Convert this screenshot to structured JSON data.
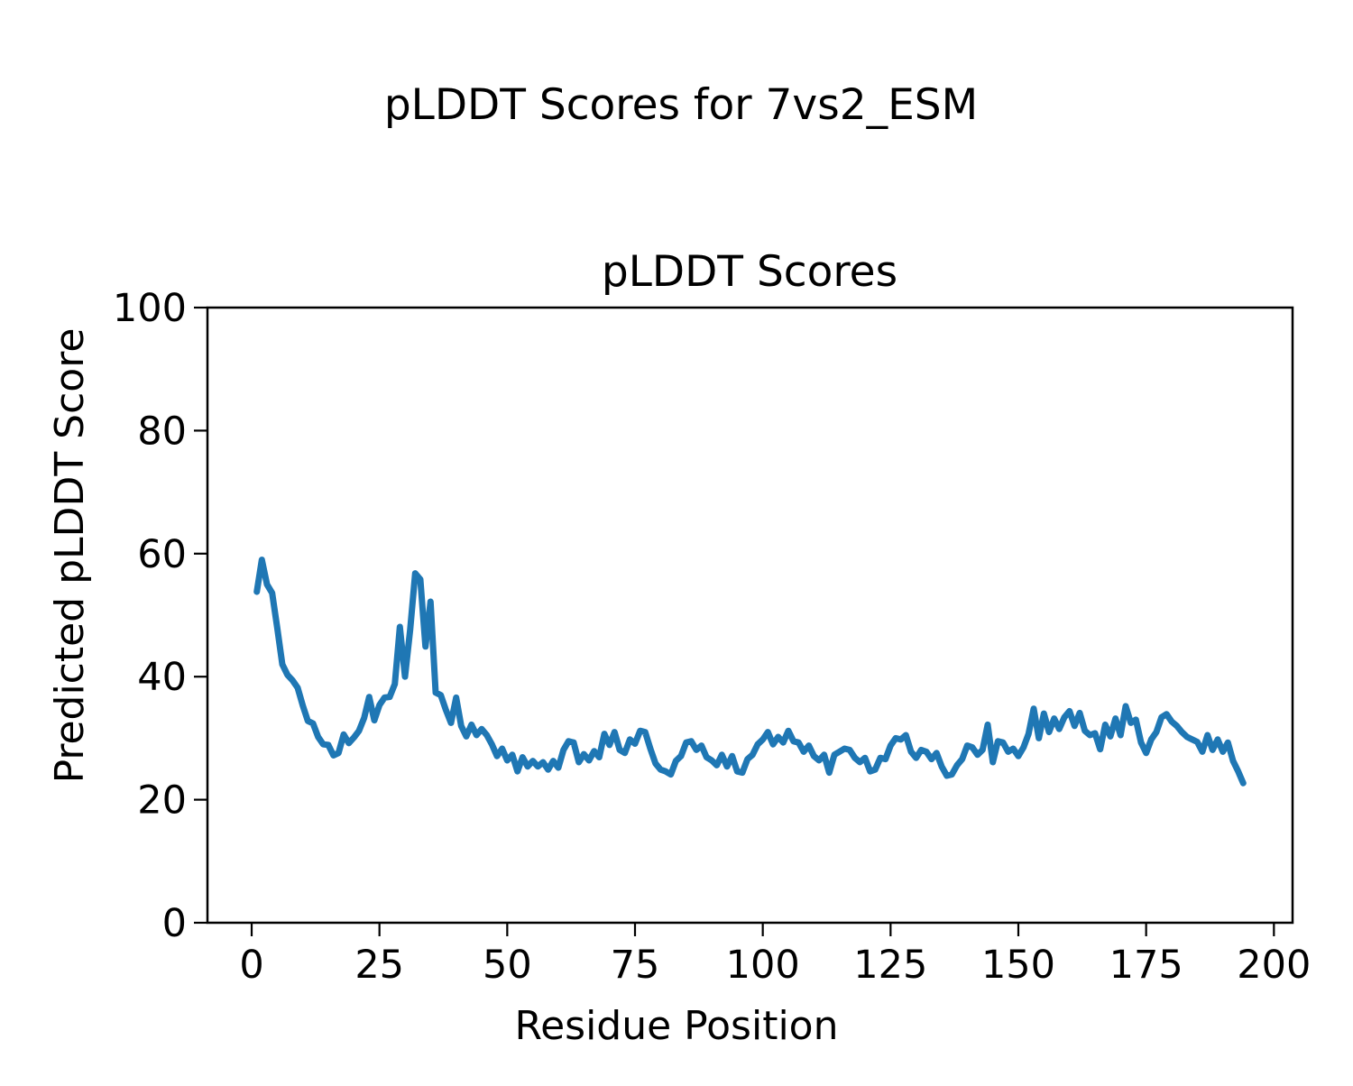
{
  "figure": {
    "title": "pLDDT Scores for 7vs2_ESM",
    "background": "#ffffff",
    "text_color": "#000000"
  },
  "chart_data": {
    "type": "line",
    "title": "pLDDT Scores",
    "xlabel": "Residue Position",
    "ylabel": "Predicted pLDDT Score",
    "legend": "none",
    "grid": false,
    "line_color": "#1f77b4",
    "xlim": [
      -8.65,
      203.65
    ],
    "ylim": [
      0,
      100
    ],
    "xticks": [
      0,
      25,
      50,
      75,
      100,
      125,
      150,
      175,
      200
    ],
    "yticks": [
      0,
      20,
      40,
      60,
      80,
      100
    ],
    "x_start": 1,
    "x_step": 1,
    "series": [
      {
        "name": "pLDDT",
        "values": [
          53.8,
          59.0,
          55.0,
          53.6,
          48.0,
          42.0,
          40.3,
          39.4,
          38.2,
          35.3,
          32.8,
          32.4,
          30.2,
          29.0,
          28.9,
          27.2,
          27.6,
          30.6,
          29.2,
          30.1,
          31.2,
          33.3,
          36.7,
          32.9,
          35.4,
          36.6,
          36.7,
          38.8,
          48.1,
          40.0,
          47.6,
          56.8,
          55.8,
          44.9,
          52.2,
          37.4,
          37.0,
          34.6,
          32.5,
          36.6,
          32.0,
          30.3,
          32.2,
          30.5,
          31.5,
          30.5,
          29.0,
          27.1,
          28.3,
          26.4,
          27.3,
          24.6,
          26.9,
          25.4,
          26.3,
          25.4,
          26.1,
          24.9,
          26.3,
          25.2,
          28.1,
          29.5,
          29.3,
          26.1,
          27.4,
          26.4,
          27.9,
          26.9,
          30.7,
          28.9,
          31.0,
          28.1,
          27.6,
          29.8,
          29.1,
          31.2,
          31.0,
          28.3,
          25.9,
          24.9,
          24.6,
          24.1,
          26.3,
          27.1,
          29.3,
          29.5,
          28.1,
          28.8,
          26.9,
          26.4,
          25.6,
          27.3,
          25.4,
          27.1,
          24.6,
          24.4,
          26.6,
          27.3,
          29.0,
          29.8,
          31.0,
          29.0,
          30.2,
          29.3,
          31.2,
          29.5,
          29.3,
          27.8,
          28.8,
          27.1,
          26.4,
          27.3,
          24.4,
          27.3,
          27.8,
          28.3,
          28.1,
          26.8,
          26.1,
          26.8,
          24.6,
          24.9,
          26.8,
          26.6,
          28.8,
          30.0,
          29.8,
          30.5,
          27.8,
          26.8,
          28.1,
          27.8,
          26.6,
          27.6,
          25.4,
          23.9,
          24.1,
          25.6,
          26.6,
          28.8,
          28.5,
          27.3,
          28.1,
          32.2,
          26.1,
          29.5,
          29.3,
          27.8,
          28.3,
          27.1,
          28.5,
          30.7,
          34.8,
          30.0,
          34.0,
          31.0,
          33.2,
          31.5,
          33.4,
          34.4,
          32.0,
          34.1,
          31.2,
          30.5,
          30.8,
          28.2,
          32.2,
          30.3,
          33.2,
          30.5,
          35.2,
          32.5,
          33.0,
          29.3,
          27.6,
          29.8,
          31.0,
          33.4,
          33.9,
          32.7,
          32.0,
          31.0,
          30.2,
          29.8,
          29.4,
          27.8,
          30.5,
          28.1,
          29.8,
          27.8,
          29.3,
          26.3,
          24.6,
          22.7
        ]
      }
    ]
  }
}
